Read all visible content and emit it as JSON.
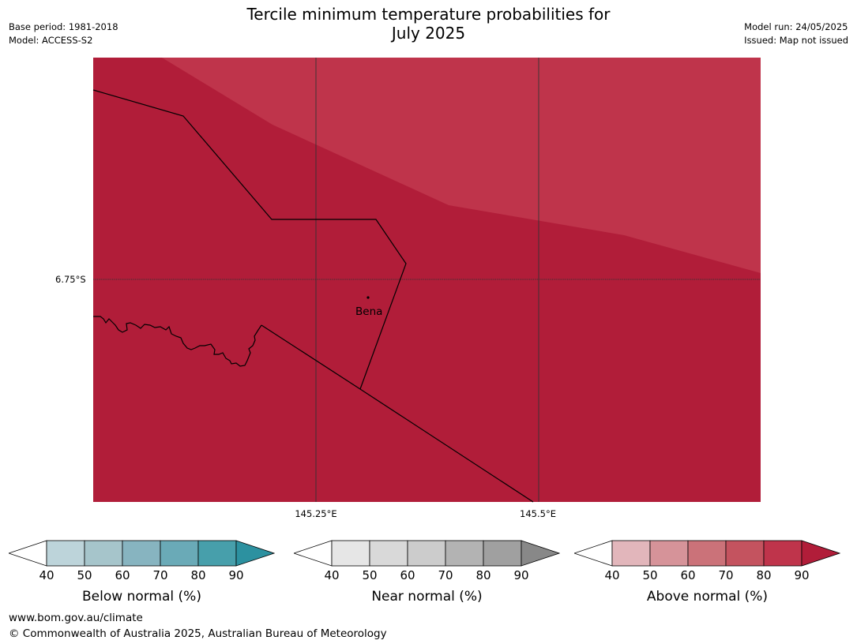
{
  "header": {
    "title_line1": "Tercile minimum temperature probabilities for",
    "title_line2": "July 2025",
    "base_period": "Base period: 1981-2018",
    "model": "Model: ACCESS-S2",
    "model_run": "Model run: 24/05/2025",
    "issued": "Issued: Map not issued"
  },
  "map": {
    "latitude_labels": [
      "6.75°S"
    ],
    "longitude_labels": [
      "145.25°E",
      "145.5°E"
    ],
    "places": [
      {
        "name": "Bena"
      }
    ],
    "colors": {
      "above_80_90": "#b11d39",
      "above_70_80": "#bf344b",
      "border": "#000000",
      "gridline": "#333333"
    }
  },
  "legends": {
    "ticks": [
      "40",
      "50",
      "60",
      "70",
      "80",
      "90"
    ],
    "below": {
      "title": "Below normal (%)",
      "colors": [
        "#ffffff",
        "#bdd4da",
        "#a6c5cb",
        "#87b4c0",
        "#6aaab7",
        "#479fab",
        "#2c91a0"
      ]
    },
    "near": {
      "title": "Near normal (%)",
      "colors": [
        "#ffffff",
        "#e6e6e6",
        "#d9d9d9",
        "#cccccc",
        "#b3b3b3",
        "#a0a0a0",
        "#888888"
      ]
    },
    "above": {
      "title": "Above normal (%)",
      "colors": [
        "#ffffff",
        "#e2b6bb",
        "#d69399",
        "#cb7279",
        "#c4535f",
        "#bf344b",
        "#b11d39"
      ]
    }
  },
  "footer": {
    "url": "www.bom.gov.au/climate",
    "copyright": "© Commonwealth of Australia 2025, Australian Bureau of Meteorology"
  }
}
